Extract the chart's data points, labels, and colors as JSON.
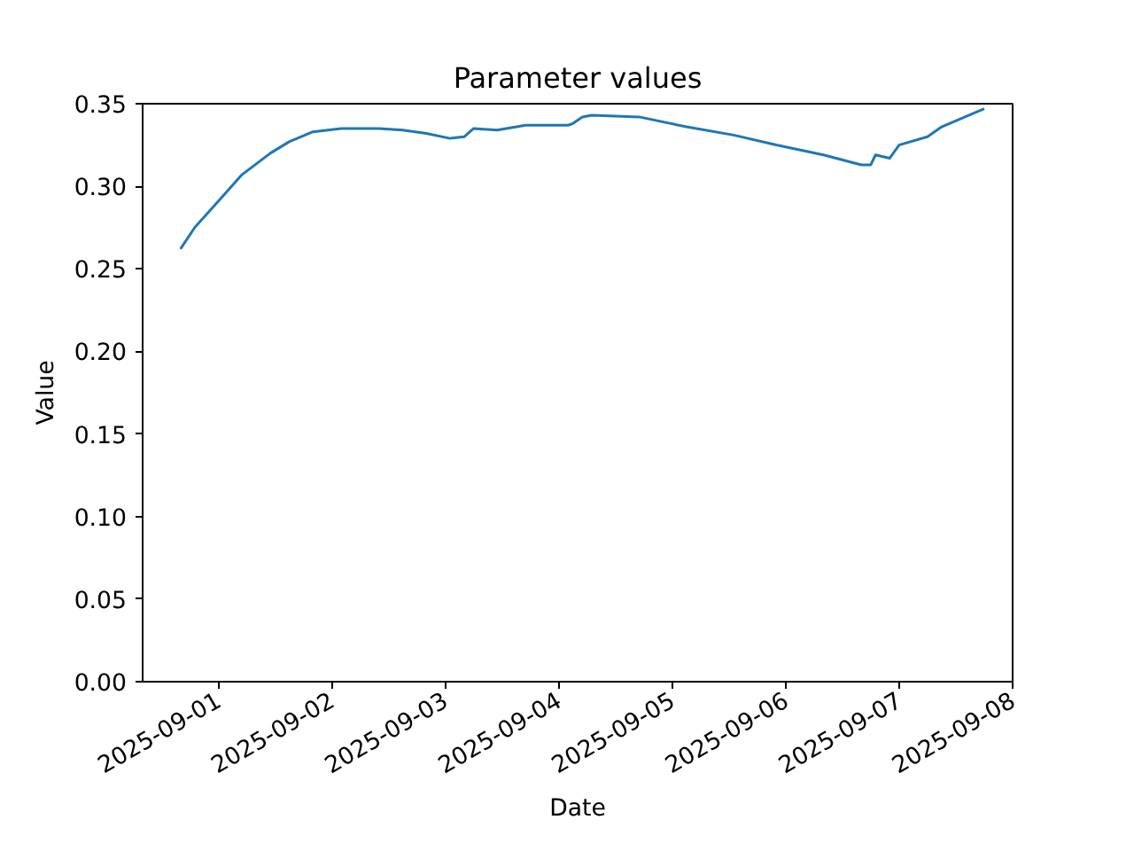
{
  "chart_data": {
    "type": "line",
    "title": "Parameter values",
    "xlabel": "Date",
    "ylabel": "Value",
    "x": [
      "2025-08-31T16:00",
      "2025-08-31T19:00",
      "2025-09-01T00:00",
      "2025-09-01T05:00",
      "2025-09-01T11:00",
      "2025-09-01T15:00",
      "2025-09-01T20:00",
      "2025-09-02T02:00",
      "2025-09-02T10:00",
      "2025-09-02T15:00",
      "2025-09-02T20:00",
      "2025-09-03T01:00",
      "2025-09-03T04:00",
      "2025-09-03T06:00",
      "2025-09-03T11:00",
      "2025-09-03T17:00",
      "2025-09-04T02:00",
      "2025-09-04T03:00",
      "2025-09-04T05:00",
      "2025-09-04T07:00",
      "2025-09-04T17:00",
      "2025-09-05T03:00",
      "2025-09-05T13:00",
      "2025-09-05T22:00",
      "2025-09-06T08:00",
      "2025-09-06T16:00",
      "2025-09-06T18:00",
      "2025-09-06T19:00",
      "2025-09-06T22:00",
      "2025-09-07T00:00",
      "2025-09-07T06:00",
      "2025-09-07T09:00",
      "2025-09-07T18:00"
    ],
    "series": [
      {
        "color": "#1f77b4",
        "values": [
          0.262,
          0.275,
          0.291,
          0.307,
          0.32,
          0.327,
          0.333,
          0.335,
          0.335,
          0.334,
          0.332,
          0.329,
          0.33,
          0.335,
          0.334,
          0.337,
          0.337,
          0.338,
          0.342,
          0.343,
          0.342,
          0.336,
          0.331,
          0.325,
          0.319,
          0.313,
          0.313,
          0.319,
          0.317,
          0.325,
          0.33,
          0.336,
          0.347
        ]
      }
    ],
    "xlim": [
      "2025-08-31T08:00",
      "2025-09-08"
    ],
    "xticks": [
      "2025-09-01",
      "2025-09-02",
      "2025-09-03",
      "2025-09-04",
      "2025-09-05",
      "2025-09-06",
      "2025-09-07",
      "2025-09-08"
    ],
    "ylim": [
      0,
      0.35
    ],
    "yticks": [
      {
        "value": 0,
        "label": "0.00"
      },
      {
        "value": 0.05,
        "label": "0.05"
      },
      {
        "value": 0.1,
        "label": "0.10"
      },
      {
        "value": 0.15,
        "label": "0.15"
      },
      {
        "value": 0.2,
        "label": "0.20"
      },
      {
        "value": 0.25,
        "label": "0.25"
      },
      {
        "value": 0.3,
        "label": "0.30"
      },
      {
        "value": 0.35,
        "label": "0.35"
      }
    ],
    "grid": false
  }
}
